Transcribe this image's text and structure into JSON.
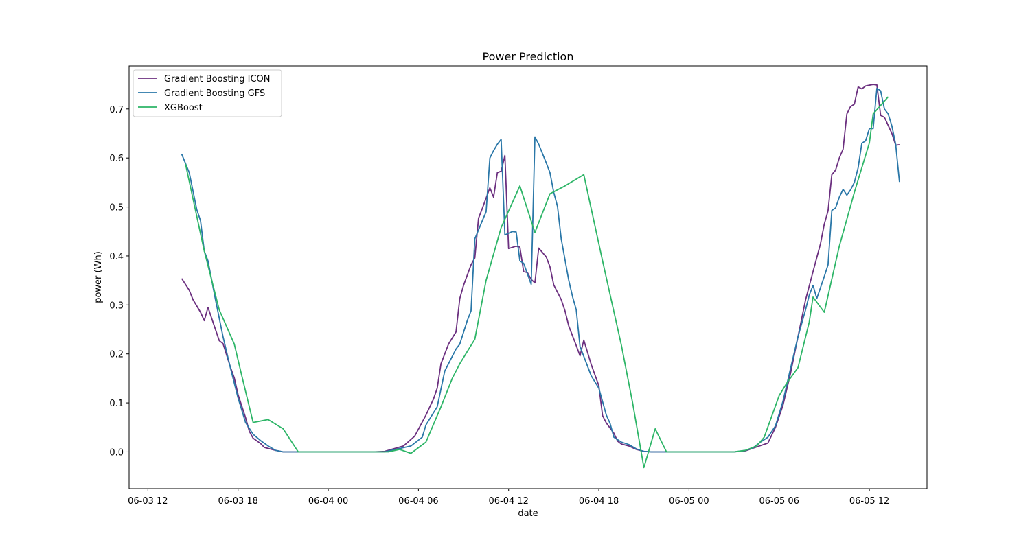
{
  "chart_data": {
    "type": "line",
    "title": "Power Prediction",
    "xlabel": "date",
    "ylabel": "power (Wh)",
    "x_axis": "datetime",
    "xlim": [
      "2024-06-03T10:45",
      "2024-06-05T15:50"
    ],
    "ylim": [
      -0.075,
      0.788
    ],
    "x_ticks": [
      {
        "value": "2024-06-03T12:00",
        "label": "06-03 12"
      },
      {
        "value": "2024-06-03T18:00",
        "label": "06-03 18"
      },
      {
        "value": "2024-06-04T00:00",
        "label": "06-04 00"
      },
      {
        "value": "2024-06-04T06:00",
        "label": "06-04 06"
      },
      {
        "value": "2024-06-04T12:00",
        "label": "06-04 12"
      },
      {
        "value": "2024-06-04T18:00",
        "label": "06-04 18"
      },
      {
        "value": "2024-06-05T00:00",
        "label": "06-05 00"
      },
      {
        "value": "2024-06-05T06:00",
        "label": "06-05 06"
      },
      {
        "value": "2024-06-05T12:00",
        "label": "06-05 12"
      }
    ],
    "y_ticks": [
      {
        "value": 0.0,
        "label": "0.0"
      },
      {
        "value": 0.1,
        "label": "0.1"
      },
      {
        "value": 0.2,
        "label": "0.2"
      },
      {
        "value": 0.3,
        "label": "0.3"
      },
      {
        "value": 0.4,
        "label": "0.4"
      },
      {
        "value": 0.5,
        "label": "0.5"
      },
      {
        "value": 0.6,
        "label": "0.6"
      },
      {
        "value": 0.7,
        "label": "0.7"
      }
    ],
    "grid": false,
    "legend_position": "top-left",
    "series": [
      {
        "name": "Gradient Boosting ICON",
        "color": "#6b2f7f",
        "points": [
          [
            "2024-06-03T14:15",
            0.354
          ],
          [
            "2024-06-03T14:45",
            0.33
          ],
          [
            "2024-06-03T15:00",
            0.311
          ],
          [
            "2024-06-03T15:30",
            0.285
          ],
          [
            "2024-06-03T15:45",
            0.268
          ],
          [
            "2024-06-03T16:00",
            0.295
          ],
          [
            "2024-06-03T16:45",
            0.227
          ],
          [
            "2024-06-03T17:00",
            0.221
          ],
          [
            "2024-06-03T17:30",
            0.172
          ],
          [
            "2024-06-03T17:45",
            0.151
          ],
          [
            "2024-06-03T18:00",
            0.117
          ],
          [
            "2024-06-03T18:30",
            0.07
          ],
          [
            "2024-06-03T18:45",
            0.042
          ],
          [
            "2024-06-03T19:00",
            0.028
          ],
          [
            "2024-06-03T19:30",
            0.017
          ],
          [
            "2024-06-03T19:45",
            0.009
          ],
          [
            "2024-06-03T20:30",
            0.003
          ],
          [
            "2024-06-03T21:00",
            0.0
          ],
          [
            "2024-06-04T03:00",
            0.0
          ],
          [
            "2024-06-04T03:45",
            0.001
          ],
          [
            "2024-06-04T05:00",
            0.012
          ],
          [
            "2024-06-04T05:45",
            0.032
          ],
          [
            "2024-06-04T06:30",
            0.075
          ],
          [
            "2024-06-04T07:00",
            0.108
          ],
          [
            "2024-06-04T07:15",
            0.13
          ],
          [
            "2024-06-04T07:30",
            0.18
          ],
          [
            "2024-06-04T08:00",
            0.22
          ],
          [
            "2024-06-04T08:30",
            0.245
          ],
          [
            "2024-06-04T08:45",
            0.313
          ],
          [
            "2024-06-04T09:00",
            0.34
          ],
          [
            "2024-06-04T09:30",
            0.382
          ],
          [
            "2024-06-04T09:45",
            0.396
          ],
          [
            "2024-06-04T10:00",
            0.477
          ],
          [
            "2024-06-04T10:15",
            0.497
          ],
          [
            "2024-06-04T10:45",
            0.539
          ],
          [
            "2024-06-04T11:00",
            0.52
          ],
          [
            "2024-06-04T11:15",
            0.57
          ],
          [
            "2024-06-04T11:30",
            0.573
          ],
          [
            "2024-06-04T11:45",
            0.605
          ],
          [
            "2024-06-04T12:00",
            0.415
          ],
          [
            "2024-06-04T12:30",
            0.42
          ],
          [
            "2024-06-04T12:45",
            0.418
          ],
          [
            "2024-06-04T13:00",
            0.368
          ],
          [
            "2024-06-04T13:15",
            0.366
          ],
          [
            "2024-06-04T13:30",
            0.352
          ],
          [
            "2024-06-04T13:45",
            0.345
          ],
          [
            "2024-06-04T14:00",
            0.416
          ],
          [
            "2024-06-04T14:30",
            0.398
          ],
          [
            "2024-06-04T14:45",
            0.378
          ],
          [
            "2024-06-04T15:00",
            0.341
          ],
          [
            "2024-06-04T15:30",
            0.311
          ],
          [
            "2024-06-04T15:45",
            0.288
          ],
          [
            "2024-06-04T16:00",
            0.257
          ],
          [
            "2024-06-04T16:30",
            0.217
          ],
          [
            "2024-06-04T16:45",
            0.196
          ],
          [
            "2024-06-04T17:00",
            0.228
          ],
          [
            "2024-06-04T17:30",
            0.178
          ],
          [
            "2024-06-04T18:00",
            0.135
          ],
          [
            "2024-06-04T18:15",
            0.074
          ],
          [
            "2024-06-04T18:30",
            0.059
          ],
          [
            "2024-06-04T19:00",
            0.038
          ],
          [
            "2024-06-04T19:15",
            0.022
          ],
          [
            "2024-06-04T19:30",
            0.016
          ],
          [
            "2024-06-04T20:00",
            0.012
          ],
          [
            "2024-06-04T20:30",
            0.005
          ],
          [
            "2024-06-04T21:00",
            0.001
          ],
          [
            "2024-06-04T21:30",
            0.0
          ],
          [
            "2024-06-05T03:00",
            0.0
          ],
          [
            "2024-06-05T03:45",
            0.002
          ],
          [
            "2024-06-05T04:30",
            0.01
          ],
          [
            "2024-06-05T05:15",
            0.018
          ],
          [
            "2024-06-05T05:45",
            0.05
          ],
          [
            "2024-06-05T06:15",
            0.095
          ],
          [
            "2024-06-05T06:45",
            0.16
          ],
          [
            "2024-06-05T07:15",
            0.235
          ],
          [
            "2024-06-05T07:45",
            0.31
          ],
          [
            "2024-06-05T08:15",
            0.368
          ],
          [
            "2024-06-05T08:45",
            0.425
          ],
          [
            "2024-06-05T09:00",
            0.465
          ],
          [
            "2024-06-05T09:15",
            0.492
          ],
          [
            "2024-06-05T09:30",
            0.566
          ],
          [
            "2024-06-05T09:45",
            0.575
          ],
          [
            "2024-06-05T10:00",
            0.6
          ],
          [
            "2024-06-05T10:15",
            0.618
          ],
          [
            "2024-06-05T10:30",
            0.69
          ],
          [
            "2024-06-05T10:45",
            0.705
          ],
          [
            "2024-06-05T11:00",
            0.71
          ],
          [
            "2024-06-05T11:15",
            0.745
          ],
          [
            "2024-06-05T11:30",
            0.741
          ],
          [
            "2024-06-05T11:45",
            0.747
          ],
          [
            "2024-06-05T12:15",
            0.75
          ],
          [
            "2024-06-05T12:30",
            0.749
          ],
          [
            "2024-06-05T12:45",
            0.687
          ],
          [
            "2024-06-05T13:00",
            0.683
          ],
          [
            "2024-06-05T13:30",
            0.65
          ],
          [
            "2024-06-05T13:45",
            0.626
          ],
          [
            "2024-06-05T14:00",
            0.627
          ]
        ]
      },
      {
        "name": "Gradient Boosting GFS",
        "color": "#2a77a8",
        "points": [
          [
            "2024-06-03T14:15",
            0.608
          ],
          [
            "2024-06-03T14:45",
            0.57
          ],
          [
            "2024-06-03T15:15",
            0.495
          ],
          [
            "2024-06-03T15:30",
            0.472
          ],
          [
            "2024-06-03T15:45",
            0.41
          ],
          [
            "2024-06-03T16:00",
            0.39
          ],
          [
            "2024-06-03T16:30",
            0.31
          ],
          [
            "2024-06-03T17:00",
            0.235
          ],
          [
            "2024-06-03T17:30",
            0.17
          ],
          [
            "2024-06-03T18:00",
            0.11
          ],
          [
            "2024-06-03T18:30",
            0.06
          ],
          [
            "2024-06-03T19:00",
            0.036
          ],
          [
            "2024-06-03T19:30",
            0.023
          ],
          [
            "2024-06-03T20:00",
            0.012
          ],
          [
            "2024-06-03T20:30",
            0.003
          ],
          [
            "2024-06-03T21:00",
            0.0
          ],
          [
            "2024-06-04T03:45",
            0.0
          ],
          [
            "2024-06-04T05:30",
            0.012
          ],
          [
            "2024-06-04T06:15",
            0.03
          ],
          [
            "2024-06-04T06:30",
            0.055
          ],
          [
            "2024-06-04T07:15",
            0.092
          ],
          [
            "2024-06-04T07:45",
            0.165
          ],
          [
            "2024-06-04T08:30",
            0.21
          ],
          [
            "2024-06-04T08:45",
            0.22
          ],
          [
            "2024-06-04T09:15",
            0.268
          ],
          [
            "2024-06-04T09:30",
            0.288
          ],
          [
            "2024-06-04T09:45",
            0.435
          ],
          [
            "2024-06-04T10:15",
            0.472
          ],
          [
            "2024-06-04T10:30",
            0.49
          ],
          [
            "2024-06-04T10:45",
            0.6
          ],
          [
            "2024-06-04T11:00",
            0.615
          ],
          [
            "2024-06-04T11:15",
            0.628
          ],
          [
            "2024-06-04T11:30",
            0.638
          ],
          [
            "2024-06-04T11:45",
            0.443
          ],
          [
            "2024-06-04T12:15",
            0.45
          ],
          [
            "2024-06-04T12:30",
            0.449
          ],
          [
            "2024-06-04T12:45",
            0.39
          ],
          [
            "2024-06-04T13:00",
            0.385
          ],
          [
            "2024-06-04T13:30",
            0.342
          ],
          [
            "2024-06-04T13:45",
            0.643
          ],
          [
            "2024-06-04T14:00",
            0.628
          ],
          [
            "2024-06-04T14:30",
            0.59
          ],
          [
            "2024-06-04T14:45",
            0.57
          ],
          [
            "2024-06-04T15:00",
            0.53
          ],
          [
            "2024-06-04T15:15",
            0.501
          ],
          [
            "2024-06-04T15:30",
            0.435
          ],
          [
            "2024-06-04T16:00",
            0.35
          ],
          [
            "2024-06-04T16:15",
            0.317
          ],
          [
            "2024-06-04T16:30",
            0.29
          ],
          [
            "2024-06-04T16:45",
            0.215
          ],
          [
            "2024-06-04T17:30",
            0.155
          ],
          [
            "2024-06-04T18:00",
            0.13
          ],
          [
            "2024-06-04T18:30",
            0.075
          ],
          [
            "2024-06-04T18:45",
            0.058
          ],
          [
            "2024-06-04T19:00",
            0.03
          ],
          [
            "2024-06-04T19:30",
            0.02
          ],
          [
            "2024-06-04T20:00",
            0.015
          ],
          [
            "2024-06-04T20:30",
            0.006
          ],
          [
            "2024-06-04T21:00",
            0.001
          ],
          [
            "2024-06-04T21:30",
            0.0
          ],
          [
            "2024-06-05T03:00",
            0.0
          ],
          [
            "2024-06-05T03:45",
            0.003
          ],
          [
            "2024-06-05T04:15",
            0.008
          ],
          [
            "2024-06-05T04:45",
            0.02
          ],
          [
            "2024-06-05T05:15",
            0.03
          ],
          [
            "2024-06-05T05:45",
            0.053
          ],
          [
            "2024-06-05T06:15",
            0.103
          ],
          [
            "2024-06-05T06:45",
            0.17
          ],
          [
            "2024-06-05T07:15",
            0.235
          ],
          [
            "2024-06-05T07:45",
            0.29
          ],
          [
            "2024-06-05T08:00",
            0.32
          ],
          [
            "2024-06-05T08:15",
            0.34
          ],
          [
            "2024-06-05T08:30",
            0.313
          ],
          [
            "2024-06-05T09:00",
            0.358
          ],
          [
            "2024-06-05T09:15",
            0.382
          ],
          [
            "2024-06-05T09:30",
            0.493
          ],
          [
            "2024-06-05T09:45",
            0.498
          ],
          [
            "2024-06-05T10:00",
            0.52
          ],
          [
            "2024-06-05T10:15",
            0.536
          ],
          [
            "2024-06-05T10:30",
            0.524
          ],
          [
            "2024-06-05T10:45",
            0.535
          ],
          [
            "2024-06-05T11:00",
            0.55
          ],
          [
            "2024-06-05T11:15",
            0.58
          ],
          [
            "2024-06-05T11:30",
            0.63
          ],
          [
            "2024-06-05T11:45",
            0.635
          ],
          [
            "2024-06-05T12:00",
            0.66
          ],
          [
            "2024-06-05T12:15",
            0.66
          ],
          [
            "2024-06-05T12:30",
            0.742
          ],
          [
            "2024-06-05T12:45",
            0.737
          ],
          [
            "2024-06-05T13:00",
            0.7
          ],
          [
            "2024-06-05T13:15",
            0.69
          ],
          [
            "2024-06-05T13:30",
            0.665
          ],
          [
            "2024-06-05T13:45",
            0.628
          ],
          [
            "2024-06-05T14:00",
            0.551
          ]
        ]
      },
      {
        "name": "XGBoost",
        "color": "#2db567",
        "points": [
          [
            "2024-06-03T14:30",
            0.588
          ],
          [
            "2024-06-03T15:45",
            0.41
          ],
          [
            "2024-06-03T16:45",
            0.29
          ],
          [
            "2024-06-03T17:45",
            0.22
          ],
          [
            "2024-06-03T18:15",
            0.155
          ],
          [
            "2024-06-03T19:00",
            0.06
          ],
          [
            "2024-06-03T20:00",
            0.066
          ],
          [
            "2024-06-03T21:00",
            0.047
          ],
          [
            "2024-06-03T22:00",
            0.0
          ],
          [
            "2024-06-04T04:00",
            0.0
          ],
          [
            "2024-06-04T04:45",
            0.005
          ],
          [
            "2024-06-04T05:30",
            -0.003
          ],
          [
            "2024-06-04T06:30",
            0.02
          ],
          [
            "2024-06-04T07:30",
            0.092
          ],
          [
            "2024-06-04T08:15",
            0.15
          ],
          [
            "2024-06-04T08:45",
            0.18
          ],
          [
            "2024-06-04T09:45",
            0.23
          ],
          [
            "2024-06-04T10:30",
            0.35
          ],
          [
            "2024-06-04T11:30",
            0.458
          ],
          [
            "2024-06-04T12:45",
            0.543
          ],
          [
            "2024-06-04T13:45",
            0.448
          ],
          [
            "2024-06-04T14:45",
            0.527
          ],
          [
            "2024-06-04T15:45",
            0.543
          ],
          [
            "2024-06-04T17:00",
            0.566
          ],
          [
            "2024-06-04T18:15",
            0.39
          ],
          [
            "2024-06-04T19:30",
            0.218
          ],
          [
            "2024-06-04T20:15",
            0.1
          ],
          [
            "2024-06-04T21:00",
            -0.032
          ],
          [
            "2024-06-04T21:45",
            0.047
          ],
          [
            "2024-06-04T22:30",
            0.0
          ],
          [
            "2024-06-05T03:00",
            0.0
          ],
          [
            "2024-06-05T03:45",
            0.003
          ],
          [
            "2024-06-05T04:30",
            0.012
          ],
          [
            "2024-06-05T05:00",
            0.03
          ],
          [
            "2024-06-05T06:00",
            0.115
          ],
          [
            "2024-06-05T06:30",
            0.14
          ],
          [
            "2024-06-05T07:15",
            0.172
          ],
          [
            "2024-06-05T08:00",
            0.265
          ],
          [
            "2024-06-05T08:15",
            0.316
          ],
          [
            "2024-06-05T09:00",
            0.285
          ],
          [
            "2024-06-05T10:00",
            0.42
          ],
          [
            "2024-06-05T11:00",
            0.53
          ],
          [
            "2024-06-05T12:00",
            0.631
          ],
          [
            "2024-06-05T12:15",
            0.69
          ],
          [
            "2024-06-05T13:15",
            0.725
          ]
        ]
      }
    ]
  }
}
